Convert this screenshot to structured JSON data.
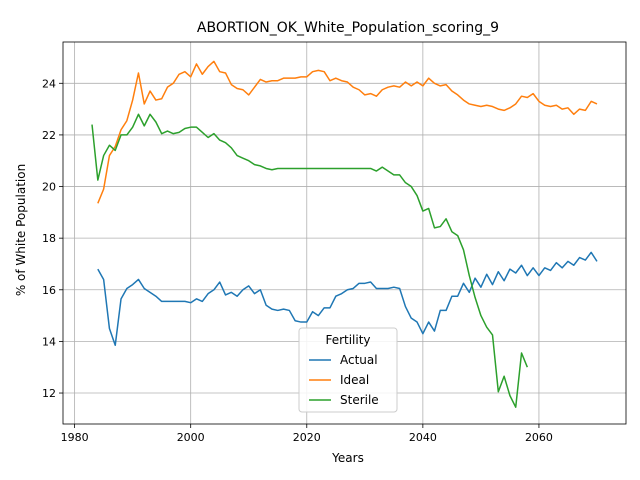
{
  "chart_data": {
    "type": "line",
    "title": "ABORTION_OK_White_Population_scoring_9",
    "xlabel": "Years",
    "ylabel": "% of White Population",
    "xlim": [
      1978.0,
      2075.0
    ],
    "ylim": [
      10.8,
      25.6
    ],
    "xticks": [
      1980,
      2000,
      2020,
      2040,
      2060
    ],
    "yticks": [
      12,
      14,
      16,
      18,
      20,
      22,
      24
    ],
    "grid": true,
    "legend": {
      "title": "Fertility",
      "placement": "lower center"
    },
    "series": [
      {
        "name": "Actual",
        "color": "#1f77b4",
        "x": [
          1984,
          1985,
          1986,
          1987,
          1988,
          1989,
          1990,
          1991,
          1992,
          1993,
          1994,
          1995,
          1996,
          1997,
          1998,
          1999,
          2000,
          2001,
          2002,
          2003,
          2004,
          2005,
          2006,
          2007,
          2008,
          2009,
          2010,
          2011,
          2012,
          2013,
          2014,
          2015,
          2016,
          2017,
          2018,
          2019,
          2020,
          2021,
          2022,
          2023,
          2024,
          2025,
          2026,
          2027,
          2028,
          2029,
          2030,
          2031,
          2032,
          2033,
          2034,
          2035,
          2036,
          2037,
          2038,
          2039,
          2040,
          2041,
          2042,
          2043,
          2044,
          2045,
          2046,
          2047,
          2048,
          2049,
          2050,
          2051,
          2052,
          2053,
          2054,
          2055,
          2056,
          2057,
          2058,
          2059,
          2060,
          2061,
          2062,
          2063,
          2064,
          2065,
          2066,
          2067,
          2068,
          2069,
          2070
        ],
        "values": [
          16.8,
          16.4,
          14.5,
          13.85,
          15.65,
          16.05,
          16.2,
          16.4,
          16.05,
          15.9,
          15.75,
          15.55,
          15.55,
          15.55,
          15.55,
          15.55,
          15.5,
          15.65,
          15.55,
          15.85,
          16.0,
          16.3,
          15.8,
          15.9,
          15.75,
          16.0,
          16.15,
          15.85,
          16.0,
          15.4,
          15.25,
          15.2,
          15.25,
          15.2,
          14.8,
          14.75,
          14.75,
          15.15,
          15.0,
          15.3,
          15.3,
          15.75,
          15.85,
          16.0,
          16.05,
          16.25,
          16.25,
          16.3,
          16.05,
          16.05,
          16.05,
          16.1,
          16.05,
          15.35,
          14.9,
          14.75,
          14.3,
          14.75,
          14.4,
          15.2,
          15.2,
          15.75,
          15.75,
          16.25,
          15.9,
          16.45,
          16.1,
          16.6,
          16.2,
          16.7,
          16.35,
          16.8,
          16.65,
          16.95,
          16.55,
          16.85,
          16.55,
          16.85,
          16.75,
          17.05,
          16.85,
          17.1,
          16.95,
          17.25,
          17.15,
          17.45,
          17.1
        ]
      },
      {
        "name": "Ideal",
        "color": "#ff7f0e",
        "x": [
          1984,
          1985,
          1986,
          1987,
          1988,
          1989,
          1990,
          1991,
          1992,
          1993,
          1994,
          1995,
          1996,
          1997,
          1998,
          1999,
          2000,
          2001,
          2002,
          2003,
          2004,
          2005,
          2006,
          2007,
          2008,
          2009,
          2010,
          2011,
          2012,
          2013,
          2014,
          2015,
          2016,
          2017,
          2018,
          2019,
          2020,
          2021,
          2022,
          2023,
          2024,
          2025,
          2026,
          2027,
          2028,
          2029,
          2030,
          2031,
          2032,
          2033,
          2034,
          2035,
          2036,
          2037,
          2038,
          2039,
          2040,
          2041,
          2042,
          2043,
          2044,
          2045,
          2046,
          2047,
          2048,
          2049,
          2050,
          2051,
          2052,
          2053,
          2054,
          2055,
          2056,
          2057,
          2058,
          2059,
          2060,
          2061,
          2062,
          2063,
          2064,
          2065,
          2066,
          2067,
          2068,
          2069,
          2070
        ],
        "values": [
          19.35,
          19.9,
          21.2,
          21.55,
          22.2,
          22.55,
          23.35,
          24.4,
          23.2,
          23.7,
          23.35,
          23.4,
          23.85,
          24.0,
          24.35,
          24.45,
          24.25,
          24.75,
          24.35,
          24.65,
          24.85,
          24.45,
          24.4,
          23.95,
          23.8,
          23.75,
          23.55,
          23.85,
          24.15,
          24.05,
          24.1,
          24.1,
          24.2,
          24.2,
          24.2,
          24.25,
          24.25,
          24.45,
          24.5,
          24.45,
          24.1,
          24.2,
          24.1,
          24.05,
          23.85,
          23.75,
          23.55,
          23.6,
          23.5,
          23.75,
          23.85,
          23.9,
          23.85,
          24.05,
          23.9,
          24.05,
          23.9,
          24.2,
          24.0,
          23.9,
          23.95,
          23.7,
          23.55,
          23.35,
          23.2,
          23.15,
          23.1,
          23.15,
          23.1,
          23.0,
          22.95,
          23.05,
          23.2,
          23.5,
          23.45,
          23.6,
          23.3,
          23.15,
          23.1,
          23.15,
          23.0,
          23.05,
          22.8,
          23.0,
          22.95,
          23.3,
          23.2
        ]
      },
      {
        "name": "Sterile",
        "color": "#2ca02c",
        "x": [
          1983,
          1984,
          1985,
          1986,
          1987,
          1988,
          1989,
          1990,
          1991,
          1992,
          1993,
          1994,
          1995,
          1996,
          1997,
          1998,
          1999,
          2000,
          2001,
          2002,
          2003,
          2004,
          2005,
          2006,
          2007,
          2008,
          2009,
          2010,
          2011,
          2012,
          2013,
          2014,
          2015,
          2016,
          2017,
          2018,
          2019,
          2020,
          2021,
          2022,
          2023,
          2024,
          2025,
          2026,
          2027,
          2028,
          2029,
          2030,
          2031,
          2032,
          2033,
          2034,
          2035,
          2036,
          2037,
          2038,
          2039,
          2040,
          2041,
          2042,
          2043,
          2044,
          2045,
          2046,
          2047,
          2048,
          2049,
          2050,
          2051,
          2052,
          2053,
          2054,
          2055,
          2056,
          2057,
          2058
        ],
        "values": [
          22.4,
          20.25,
          21.2,
          21.6,
          21.4,
          22.0,
          22.0,
          22.3,
          22.8,
          22.35,
          22.8,
          22.5,
          22.05,
          22.15,
          22.05,
          22.1,
          22.25,
          22.3,
          22.3,
          22.1,
          21.9,
          22.05,
          21.8,
          21.7,
          21.5,
          21.2,
          21.1,
          21.0,
          20.85,
          20.8,
          20.7,
          20.65,
          20.7,
          20.7,
          20.7,
          20.7,
          20.7,
          20.7,
          20.7,
          20.7,
          20.7,
          20.7,
          20.7,
          20.7,
          20.7,
          20.7,
          20.7,
          20.7,
          20.7,
          20.6,
          20.75,
          20.6,
          20.45,
          20.45,
          20.15,
          20.0,
          19.65,
          19.05,
          19.15,
          18.4,
          18.45,
          18.75,
          18.25,
          18.1,
          17.55,
          16.55,
          15.7,
          15.0,
          14.55,
          14.25,
          12.05,
          12.65,
          11.9,
          11.45,
          13.55,
          13.0
        ]
      }
    ]
  }
}
